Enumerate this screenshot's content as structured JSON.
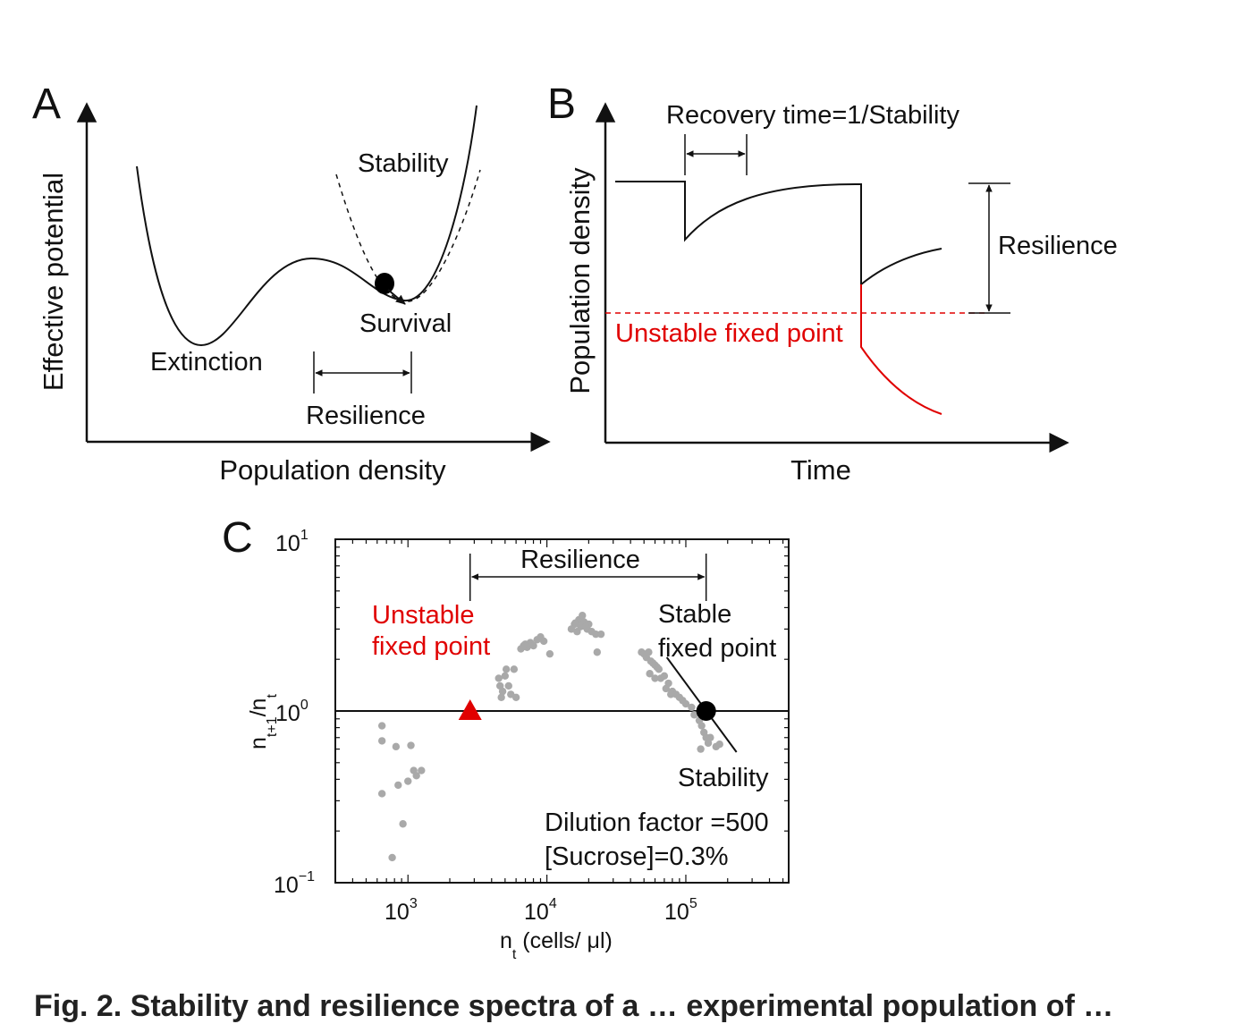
{
  "panels": {
    "a": {
      "letter": "A",
      "ylabel": "Effective potential",
      "xlabel": "Population density",
      "extinction": "Extinction",
      "stability": "Stability",
      "survival": "Survival",
      "resilience": "Resilience"
    },
    "b": {
      "letter": "B",
      "ylabel": "Population density",
      "xlabel": "Time",
      "recovery": "Recovery time=1/Stability",
      "resilience": "Resilience",
      "unstable": "Unstable fixed point"
    },
    "c": {
      "letter": "C",
      "resilience": "Resilience",
      "unstable_line1": "Unstable",
      "unstable_line2": "fixed point",
      "stable_line1": "Stable",
      "stable_line2": "fixed point",
      "stability": "Stability",
      "dilution": "Dilution factor =500",
      "sucrose": "[Sucrose]=0.3%"
    }
  },
  "caption": "Fig. 2.  Stability and resilience spectra of a … experimental population of …",
  "colors": {
    "accent_red": "#e00000",
    "data_gray": "#a9a9a9",
    "axis": "#111111"
  },
  "chart_data": {
    "type": "scatter",
    "xlabel": {
      "base": "n",
      "sub": "t",
      "rest": " (cells/ μl)"
    },
    "ylabel": {
      "base": "n",
      "sub1": "t+1",
      "mid": "/n",
      "sub2": "t"
    },
    "xscale": "log",
    "yscale": "log",
    "xlim": [
      300,
      550000
    ],
    "ylim": [
      0.1,
      10
    ],
    "xticks": [
      {
        "base": "10",
        "exp": "3",
        "value": 1000
      },
      {
        "base": "10",
        "exp": "4",
        "value": 10000
      },
      {
        "base": "10",
        "exp": "5",
        "value": 100000
      }
    ],
    "yticks": [
      {
        "base": "10",
        "exp": "−1",
        "value": 0.1
      },
      {
        "base": "10",
        "exp": "0",
        "value": 1
      },
      {
        "base": "10",
        "exp": "1",
        "value": 10
      }
    ],
    "reference_line_y": 1,
    "unstable_fixed_point": {
      "x": 2800,
      "y": 1.0
    },
    "stable_fixed_point": {
      "x": 140000,
      "y": 1.0
    },
    "resilience_span": [
      2800,
      140000
    ],
    "points": [
      [
        650,
        0.82
      ],
      [
        650,
        0.67
      ],
      [
        650,
        0.33
      ],
      [
        770,
        0.14
      ],
      [
        820,
        0.62
      ],
      [
        850,
        0.37
      ],
      [
        920,
        0.22
      ],
      [
        1000,
        0.39
      ],
      [
        1050,
        0.63
      ],
      [
        1100,
        0.45
      ],
      [
        1150,
        0.42
      ],
      [
        1250,
        0.45
      ],
      [
        4500,
        1.55
      ],
      [
        4600,
        1.4
      ],
      [
        4700,
        1.2
      ],
      [
        4800,
        1.3
      ],
      [
        5000,
        1.6
      ],
      [
        5100,
        1.75
      ],
      [
        5300,
        1.4
      ],
      [
        5500,
        1.25
      ],
      [
        5800,
        1.75
      ],
      [
        6000,
        1.2
      ],
      [
        6500,
        2.3
      ],
      [
        6800,
        2.4
      ],
      [
        7200,
        2.35
      ],
      [
        7600,
        2.5
      ],
      [
        8000,
        2.4
      ],
      [
        8500,
        2.6
      ],
      [
        9000,
        2.7
      ],
      [
        9500,
        2.55
      ],
      [
        10500,
        2.15
      ],
      [
        7000,
        2.45
      ],
      [
        15000,
        3.0
      ],
      [
        15800,
        3.2
      ],
      [
        16500,
        2.9
      ],
      [
        17000,
        3.4
      ],
      [
        17500,
        3.1
      ],
      [
        18000,
        3.6
      ],
      [
        18500,
        3.3
      ],
      [
        19500,
        3.0
      ],
      [
        20000,
        3.2
      ],
      [
        21000,
        2.9
      ],
      [
        22500,
        2.8
      ],
      [
        23000,
        2.2
      ],
      [
        24500,
        2.8
      ],
      [
        19000,
        3.1
      ],
      [
        16000,
        3.25
      ],
      [
        48000,
        2.2
      ],
      [
        50000,
        2.15
      ],
      [
        52000,
        2.05
      ],
      [
        54000,
        2.2
      ],
      [
        56000,
        1.95
      ],
      [
        58000,
        1.9
      ],
      [
        60000,
        1.85
      ],
      [
        62000,
        1.8
      ],
      [
        55000,
        1.65
      ],
      [
        60000,
        1.55
      ],
      [
        64000,
        1.75
      ],
      [
        66000,
        1.55
      ],
      [
        70000,
        1.6
      ],
      [
        75000,
        1.45
      ],
      [
        80000,
        1.3
      ],
      [
        85000,
        1.25
      ],
      [
        90000,
        1.2
      ],
      [
        95000,
        1.15
      ],
      [
        100000,
        1.1
      ],
      [
        110000,
        1.05
      ],
      [
        115000,
        0.95
      ],
      [
        125000,
        0.88
      ],
      [
        130000,
        0.82
      ],
      [
        135000,
        0.75
      ],
      [
        140000,
        0.7
      ],
      [
        128000,
        0.6
      ],
      [
        145000,
        0.65
      ],
      [
        150000,
        0.7
      ],
      [
        165000,
        0.62
      ],
      [
        175000,
        0.64
      ],
      [
        72000,
        1.35
      ],
      [
        78000,
        1.25
      ]
    ]
  }
}
